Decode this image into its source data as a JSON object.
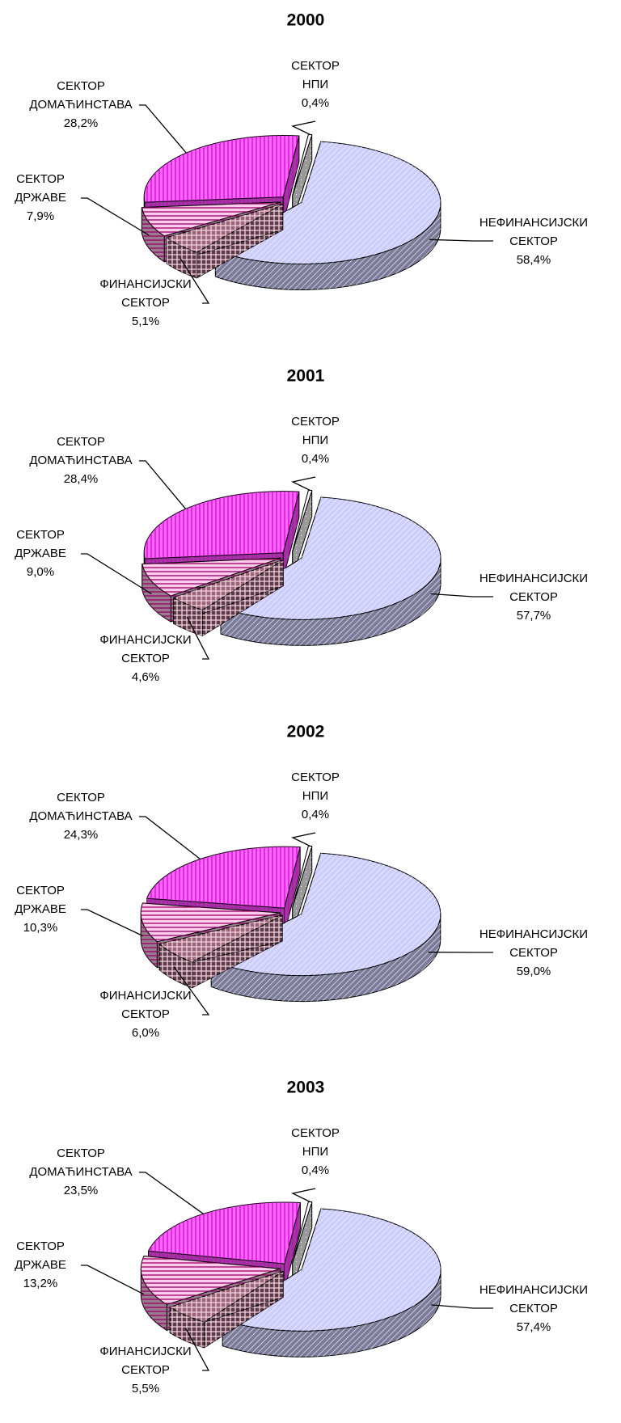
{
  "chart_data": [
    {
      "type": "pie",
      "title": "2000",
      "categories": [
        [
          "НЕФИНАНСИЈСКИ",
          "СЕКТОР"
        ],
        [
          "ФИНАНСИЈСКИ",
          "СЕКТОР"
        ],
        [
          "СЕКТОР",
          "ДРЖАВЕ"
        ],
        [
          "СЕКТОР",
          "ДОМАЋИНСТАВА"
        ],
        [
          "СЕКТОР",
          "НПИ"
        ]
      ],
      "values": [
        58.4,
        5.1,
        7.9,
        28.2,
        0.4
      ],
      "value_labels": [
        "58,4%",
        "5,1%",
        "7,9%",
        "28,2%",
        "0,4%"
      ],
      "colors": [
        "#ccccff",
        "#996677",
        "#ffccee",
        "#ff66ff",
        "#ffffff"
      ]
    },
    {
      "type": "pie",
      "title": "2001",
      "categories": [
        [
          "НЕФИНАНСИЈСКИ",
          "СЕКТОР"
        ],
        [
          "ФИНАНСИЈСКИ",
          "СЕКТОР"
        ],
        [
          "СЕКТОР",
          "ДРЖАВЕ"
        ],
        [
          "СЕКТОР",
          "ДОМАЋИНСТАВА"
        ],
        [
          "СЕКТОР",
          "НПИ"
        ]
      ],
      "values": [
        57.7,
        4.6,
        9.0,
        28.4,
        0.4
      ],
      "value_labels": [
        "57,7%",
        "4,6%",
        "9,0%",
        "28,4%",
        "0,4%"
      ],
      "colors": [
        "#ccccff",
        "#996677",
        "#ffccee",
        "#ff66ff",
        "#ffffff"
      ]
    },
    {
      "type": "pie",
      "title": "2002",
      "categories": [
        [
          "НЕФИНАНСИЈСКИ",
          "СЕКТОР"
        ],
        [
          "ФИНАНСИЈСКИ",
          "СЕКТОР"
        ],
        [
          "СЕКТОР",
          "ДРЖАВЕ"
        ],
        [
          "СЕКТОР",
          "ДОМАЋИНСТАВА"
        ],
        [
          "СЕКТОР",
          "НПИ"
        ]
      ],
      "values": [
        59.0,
        6.0,
        10.3,
        24.3,
        0.4
      ],
      "value_labels": [
        "59,0%",
        "6,0%",
        "10,3%",
        "24,3%",
        "0,4%"
      ],
      "colors": [
        "#ccccff",
        "#996677",
        "#ffccee",
        "#ff66ff",
        "#ffffff"
      ]
    },
    {
      "type": "pie",
      "title": "2003",
      "categories": [
        [
          "НЕФИНАНСИЈСКИ",
          "СЕКТОР"
        ],
        [
          "ФИНАНСИЈСКИ",
          "СЕКТОР"
        ],
        [
          "СЕКТОР",
          "ДРЖАВЕ"
        ],
        [
          "СЕКТОР",
          "ДОМАЋИНСТАВА"
        ],
        [
          "СЕКТОР",
          "НПИ"
        ]
      ],
      "values": [
        57.4,
        5.5,
        13.2,
        23.5,
        0.4
      ],
      "value_labels": [
        "57,4%",
        "5,5%",
        "13,2%",
        "23,5%",
        "0,4%"
      ],
      "colors": [
        "#ccccff",
        "#996677",
        "#ffccee",
        "#ff66ff",
        "#ffffff"
      ]
    }
  ]
}
